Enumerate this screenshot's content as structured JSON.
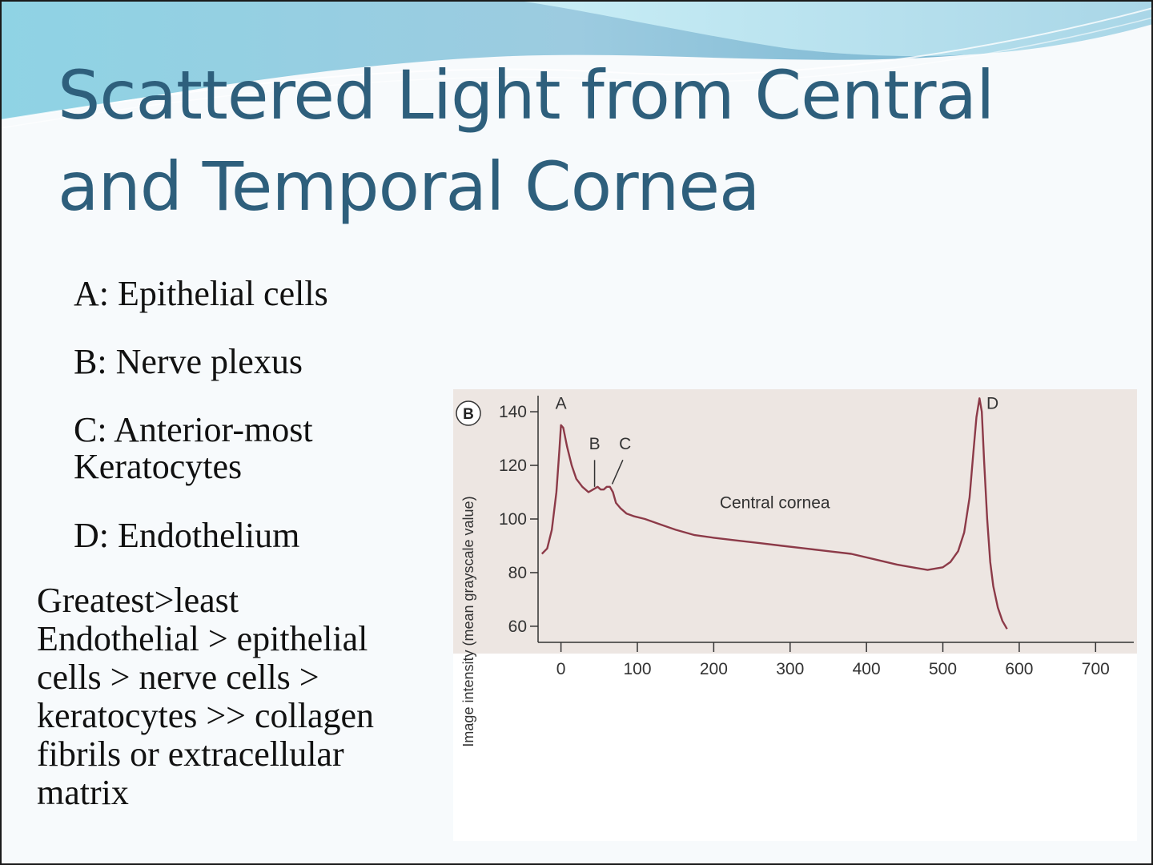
{
  "slide": {
    "title_line1": "Scattered Light from Central",
    "title_line2": "and Temporal Cornea"
  },
  "labels": [
    {
      "text": "A: Epithelial cells"
    },
    {
      "text": "B: Nerve plexus"
    },
    {
      "text": "C: Anterior-most\n     Keratocytes"
    },
    {
      "text": "D: Endothelium"
    }
  ],
  "note": {
    "line1": "Greatest>least",
    "line2": "Endothelial > epithelial cells > nerve cells > keratocytes >> collagen fibrils or extracellular matrix"
  },
  "colors": {
    "title": "#2e5f7c",
    "curve": "#8c3a48",
    "plot_bg": "#ede6e2",
    "wave_dark": "#6fb0cc",
    "wave_light": "#bfe3ee"
  },
  "chart_data": {
    "type": "line",
    "panel_label": "B",
    "ylabel": "Image intensity (mean grayscale value)",
    "xlabel": "",
    "annotation": "Central cornea",
    "xlim": [
      -30,
      750
    ],
    "ylim": [
      54,
      146
    ],
    "x_ticks": [
      0,
      100,
      200,
      300,
      400,
      500,
      600,
      700
    ],
    "y_ticks": [
      60,
      80,
      100,
      120,
      140
    ],
    "grid": false,
    "series": [
      {
        "x": [
          -25,
          -18,
          -12,
          -6,
          -2,
          0,
          3,
          8,
          14,
          20,
          28,
          36,
          42,
          48,
          52,
          56,
          60,
          64,
          68,
          72,
          78,
          86,
          96,
          110,
          130,
          150,
          175,
          200,
          230,
          260,
          290,
          320,
          350,
          380,
          410,
          440,
          460,
          480,
          500,
          510,
          520,
          528,
          535,
          540,
          544,
          548,
          551,
          554,
          558,
          562,
          566,
          572,
          578,
          584
        ],
        "y": [
          87,
          89,
          96,
          110,
          126,
          135,
          134,
          127,
          120,
          115,
          112,
          110,
          111,
          112,
          111,
          111,
          112,
          112,
          110,
          106,
          104,
          102,
          101,
          100,
          98,
          96,
          94,
          93,
          92,
          91,
          90,
          89,
          88,
          87,
          85,
          83,
          82,
          81,
          82,
          84,
          88,
          95,
          108,
          125,
          138,
          145,
          140,
          122,
          100,
          84,
          75,
          67,
          62,
          59
        ]
      }
    ],
    "point_labels": [
      {
        "text": "A",
        "x": 0,
        "y": 141
      },
      {
        "text": "B",
        "x": 44,
        "y": 126
      },
      {
        "text": "C",
        "x": 84,
        "y": 126
      },
      {
        "text": "D",
        "x": 565,
        "y": 141
      }
    ],
    "pointer_lines": [
      {
        "from": [
          44,
          122
        ],
        "to": [
          44,
          112
        ]
      },
      {
        "from": [
          81,
          122
        ],
        "to": [
          67,
          113
        ]
      }
    ]
  }
}
